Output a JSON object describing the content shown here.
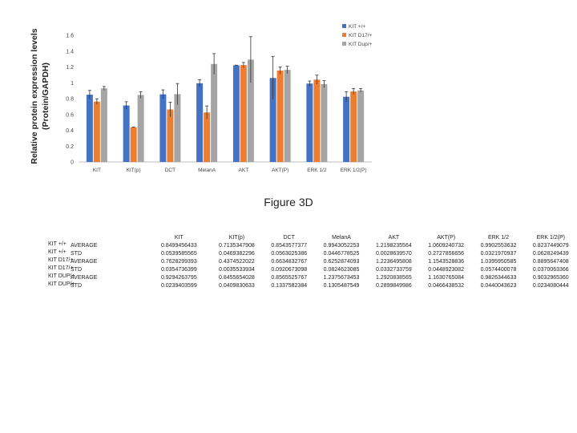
{
  "chart_data": {
    "type": "bar",
    "ylabel": "Relative protein expression levels\n(Protein/GAPDH)",
    "ylim": [
      0,
      1.6
    ],
    "yticks": [
      "0",
      "0.2",
      "0.4",
      "0.6",
      "0.8",
      "1",
      "1.2",
      "1.4",
      "1.6"
    ],
    "grid": false,
    "legend_position": "top-right",
    "categories": [
      "KIT",
      "KIT(p)",
      "DCT",
      "MelanA",
      "AKT",
      "AKT(P)",
      "ERK 1/2",
      "ERK 1/2(P)"
    ],
    "series": [
      {
        "name": "KIT +/+",
        "color": "#4472c4",
        "values": [
          0.8499,
          0.7136,
          0.8543,
          0.9943,
          1.2198,
          1.0609,
          0.9903,
          0.8237
        ],
        "errors": [
          0.054,
          0.0469,
          0.0563,
          0.0447,
          0.0029,
          0.2728,
          0.0322,
          0.0628
        ]
      },
      {
        "name": "KIT D17/+",
        "color": "#ed7d31",
        "values": [
          0.7628,
          0.4374,
          0.6635,
          0.6253,
          1.2236,
          1.1543,
          1.0396,
          0.8896
        ],
        "errors": [
          0.0355,
          0.0036,
          0.0921,
          0.0825,
          0.0332,
          0.0449,
          0.0574,
          0.037
        ]
      },
      {
        "name": "KIT Dup/+",
        "color": "#a5a5a5",
        "values": [
          0.9294,
          0.8456,
          0.8566,
          1.2376,
          1.2921,
          1.163,
          0.9826,
          0.9033
        ],
        "errors": [
          0.0239,
          0.041,
          0.1338,
          0.1306,
          0.2899,
          0.0467,
          0.044,
          0.0234
        ]
      }
    ]
  },
  "caption": "Figure 3D",
  "table": {
    "headers": [
      "",
      "",
      "KIT",
      "KIT(p)",
      "DCT",
      "MelanA",
      "AKT",
      "AKT(P)",
      "ERK 1/2",
      "ERK 1/2(P)"
    ],
    "rows": [
      [
        "KIT +/+",
        "AVERAGE",
        "0.8499456433",
        "0.7135347908",
        "0.8543577377",
        "0.9943052253",
        "1.2198235564",
        "1.0609240732",
        "0.9902553632",
        "0.8237449079"
      ],
      [
        "KIT +/+",
        "STD",
        "0.0539585565",
        "0.0469382296",
        "0.0563025386",
        "0.0446778525",
        "0.0028639570",
        "0.2727856656",
        "0.0321970937",
        "0.0628249439"
      ],
      [
        "KIT D17/+",
        "AVERAGE",
        "0.7628299393",
        "0.4374522022",
        "0.6634832767",
        "0.6252874093",
        "1.2236495808",
        "1.1543528836",
        "1.0395950585",
        "0.8895647408"
      ],
      [
        "KIT D17/+",
        "STD",
        "0.0354736399",
        "0.0035533934",
        "0.0920673098",
        "0.0824623085",
        "0.0332733759",
        "0.0448923082",
        "0.0574400078",
        "0.0370063366"
      ],
      [
        "KIT DUP/+",
        "AVERAGE",
        "0.9294263795",
        "0.8455654028",
        "0.8565525767",
        "1.2375673453",
        "1.2920838565",
        "1.1630765084",
        "0.9826344633",
        "0.9032965360"
      ],
      [
        "KIT DUP/+",
        "STD",
        "0.0239403599",
        "0.0409830633",
        "0.1337582384",
        "0.1305487549",
        "0.2899849986",
        "0.0466438532",
        "0.0440043623",
        "0.0234080444"
      ]
    ]
  }
}
